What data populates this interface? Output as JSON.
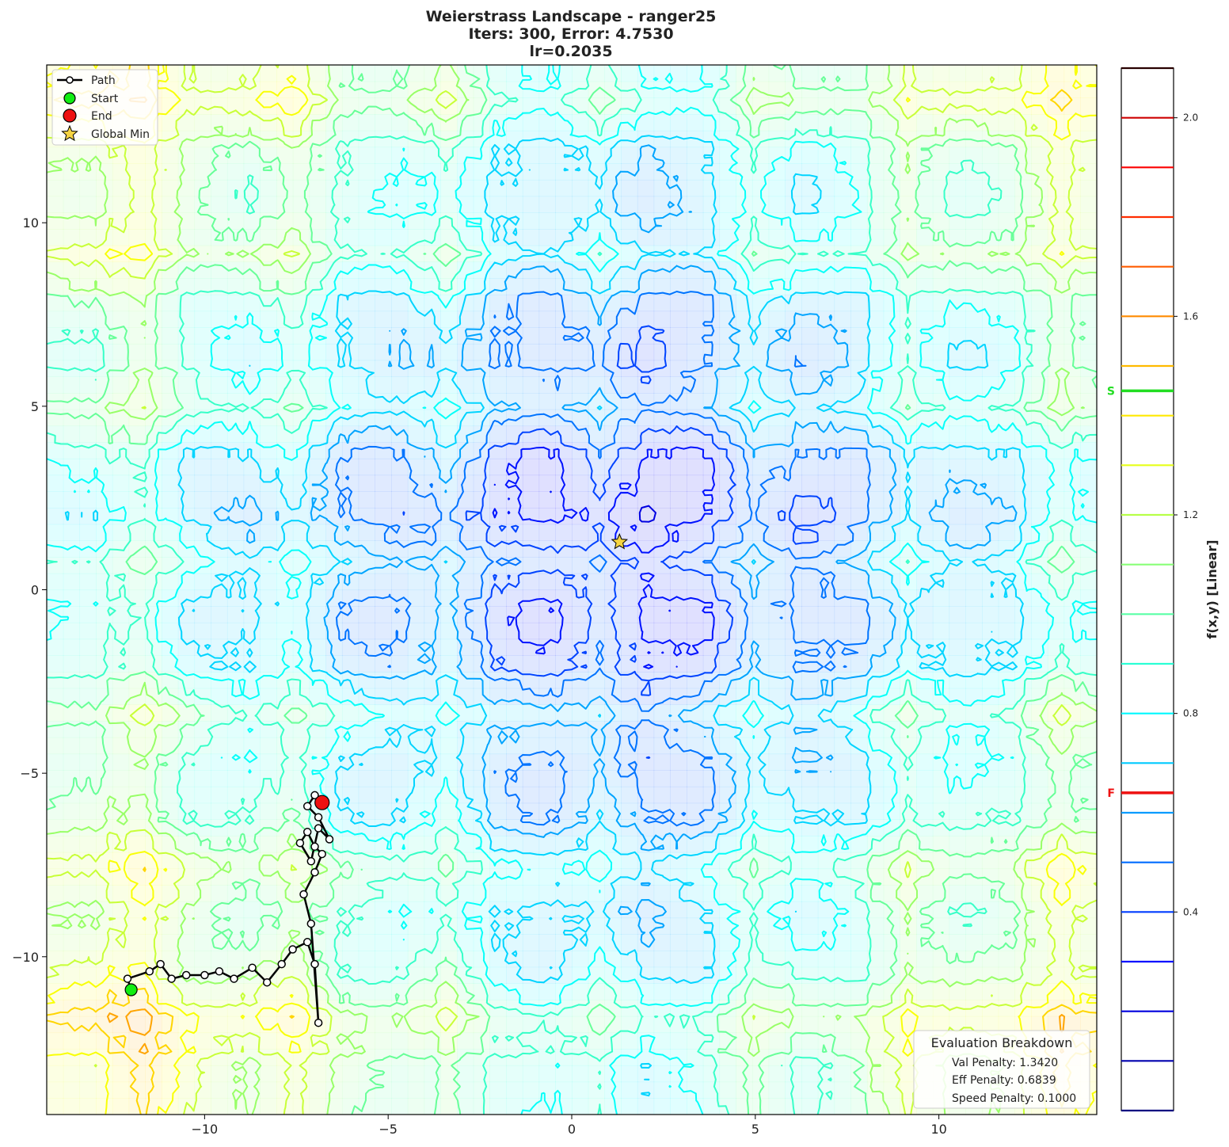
{
  "chart_data": {
    "type": "contour",
    "title_lines": [
      "Weierstrass Landscape - ranger25",
      "Iters: 300, Error: 4.7530",
      "lr=0.2035"
    ],
    "xlim": [
      -14.3,
      14.3
    ],
    "ylim": [
      -14.3,
      14.3
    ],
    "x_ticks": [
      -10,
      -5,
      0,
      5,
      10
    ],
    "y_ticks": [
      10,
      5,
      0,
      -5,
      -10
    ],
    "x_tick_labels": [
      "−10",
      "−5",
      "0",
      "5",
      "10"
    ],
    "y_tick_labels": [
      "10",
      "5",
      "0",
      "−5",
      "−10"
    ],
    "colorbar": {
      "label": "f(x,y) [Linear]",
      "scale": "linear",
      "range": [
        0.0,
        2.1
      ],
      "ticks": [
        0.4,
        0.8,
        1.2,
        1.6,
        2.0
      ],
      "tick_labels": [
        "0.4",
        "0.8",
        "1.2",
        "1.6",
        "2.0"
      ],
      "levels": [
        0.0,
        0.1,
        0.2,
        0.3,
        0.4,
        0.5,
        0.6,
        0.7,
        0.8,
        0.9,
        1.0,
        1.1,
        1.2,
        1.3,
        1.4,
        1.5,
        1.6,
        1.7,
        1.8,
        1.9,
        2.0,
        2.1
      ],
      "markers": [
        {
          "label": "S",
          "value": 1.45,
          "color": "#22dd22"
        },
        {
          "label": "F",
          "value": 0.64,
          "color": "#ee1111"
        }
      ]
    },
    "legend": {
      "placement": "upper-left",
      "entries": [
        {
          "label": "Path",
          "kind": "line-marker",
          "color": "#000000"
        },
        {
          "label": "Start",
          "kind": "marker",
          "color": "#11ee11"
        },
        {
          "label": "End",
          "kind": "marker",
          "color": "#ee1111"
        },
        {
          "label": "Global Min",
          "kind": "star",
          "color": "#f5d442"
        }
      ]
    },
    "start": [
      -12.0,
      -10.9
    ],
    "end": [
      -6.8,
      -5.8
    ],
    "global_min": [
      1.3,
      1.3
    ],
    "path_x": [
      -12.0,
      -12.1,
      -11.5,
      -11.2,
      -10.9,
      -10.5,
      -10.0,
      -9.6,
      -9.2,
      -8.7,
      -8.3,
      -7.9,
      -7.6,
      -7.2,
      -7.0,
      -6.9,
      -7.1,
      -7.3,
      -7.0,
      -6.8,
      -7.0,
      -7.2,
      -7.4,
      -7.1,
      -6.9,
      -6.6,
      -6.9,
      -7.2,
      -7.0,
      -6.8
    ],
    "path_y": [
      -10.9,
      -10.6,
      -10.4,
      -10.2,
      -10.6,
      -10.5,
      -10.5,
      -10.4,
      -10.6,
      -10.3,
      -10.7,
      -10.2,
      -9.8,
      -9.6,
      -10.2,
      -11.8,
      -9.1,
      -8.3,
      -7.7,
      -7.2,
      -7.0,
      -6.6,
      -6.9,
      -7.4,
      -6.5,
      -6.8,
      -6.2,
      -5.9,
      -5.6,
      -5.8
    ],
    "eval_box": {
      "title": "Evaluation Breakdown",
      "lines": [
        "Val Penalty: 1.3420",
        "Eff Penalty: 0.6839",
        "Speed Penalty: 0.1000"
      ]
    },
    "colors": {
      "map": [
        "#00007f",
        "#0000ff",
        "#0080ff",
        "#00e5ff",
        "#4dff99",
        "#a8ff4d",
        "#ffe600",
        "#ff8000",
        "#ff1a00",
        "#7f0000"
      ]
    }
  }
}
